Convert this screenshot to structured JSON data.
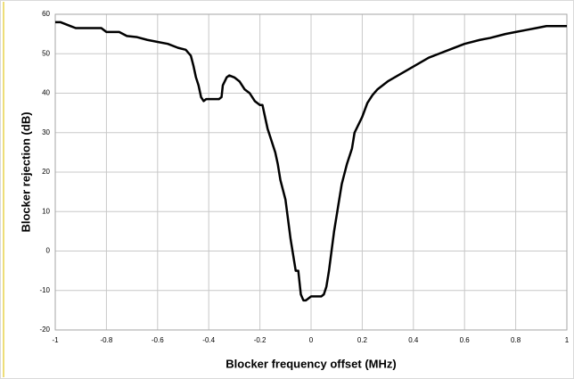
{
  "chart_data": {
    "type": "line",
    "x_label": "Blocker frequency offset (MHz)",
    "y_label": "Blocker rejection (dB)",
    "x": [
      -1,
      -0.98,
      -0.96,
      -0.94,
      -0.92,
      -0.85,
      -0.82,
      -0.8,
      -0.75,
      -0.72,
      -0.68,
      -0.64,
      -0.6,
      -0.56,
      -0.52,
      -0.49,
      -0.47,
      -0.46,
      -0.45,
      -0.44,
      -0.43,
      -0.42,
      -0.41,
      -0.38,
      -0.36,
      -0.35,
      -0.345,
      -0.33,
      -0.32,
      -0.3,
      -0.28,
      -0.26,
      -0.24,
      -0.22,
      -0.2,
      -0.19,
      -0.18,
      -0.17,
      -0.16,
      -0.14,
      -0.13,
      -0.12,
      -0.1,
      -0.09,
      -0.08,
      -0.07,
      -0.06,
      -0.05,
      -0.045,
      -0.04,
      -0.03,
      -0.02,
      -0.01,
      0,
      0.02,
      0.04,
      0.05,
      0.06,
      0.07,
      0.08,
      0.09,
      0.1,
      0.11,
      0.12,
      0.14,
      0.16,
      0.17,
      0.2,
      0.22,
      0.24,
      0.26,
      0.3,
      0.34,
      0.38,
      0.42,
      0.46,
      0.5,
      0.54,
      0.6,
      0.66,
      0.7,
      0.76,
      0.8,
      0.84,
      0.88,
      0.92,
      1
    ],
    "series": [
      {
        "color": "#000000",
        "values": [
          58,
          58,
          57.5,
          57,
          56.5,
          56.5,
          56.5,
          55.5,
          55.5,
          54.5,
          54.2,
          53.5,
          53,
          52.5,
          51.5,
          51,
          49.5,
          47,
          44,
          42,
          39,
          38,
          38.5,
          38.5,
          38.5,
          39,
          42,
          44,
          44.5,
          44,
          43,
          41,
          40,
          38,
          37,
          37,
          34,
          31,
          29,
          25,
          22,
          18,
          13,
          8,
          3,
          -1,
          -5,
          -5,
          -8,
          -11,
          -12.5,
          -12.5,
          -12,
          -11.5,
          -11.5,
          -11.5,
          -11,
          -9,
          -5,
          0,
          5,
          9,
          13,
          17,
          22,
          26,
          30,
          34,
          37.5,
          39.5,
          41,
          43,
          44.5,
          46,
          47.5,
          49,
          50,
          51,
          52.5,
          53.5,
          54,
          55,
          55.5,
          56,
          56.5,
          57,
          57
        ]
      }
    ],
    "xlim": [
      -1,
      1
    ],
    "xticks": [
      -1,
      -0.8,
      -0.6,
      -0.4,
      -0.2,
      0,
      0.2,
      0.4,
      0.6,
      0.8,
      1
    ],
    "ylim": [
      -20,
      60
    ],
    "yticks": [
      -20,
      -10,
      0,
      10,
      20,
      30,
      40,
      50,
      60
    ],
    "grid": true
  }
}
